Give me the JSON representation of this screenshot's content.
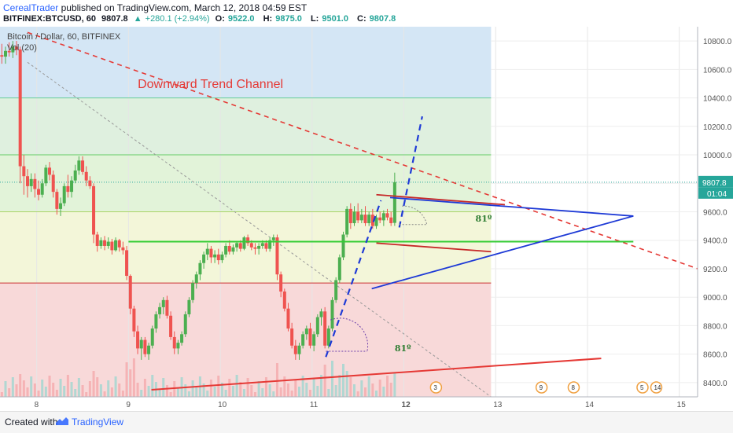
{
  "header": {
    "author": "CerealTrader",
    "published_text": "published on TradingView.com, March 12, 2018 04:59 EST",
    "symbol": "BITFINEX:BTCUSD, 60",
    "last": "9807.8",
    "change_icon": "triangle-up-icon",
    "change": "+280.1 (+2.94%)",
    "o_label": "O:",
    "o": "9522.0",
    "h_label": "H:",
    "h": "9875.0",
    "l_label": "L:",
    "l": "9501.0",
    "c_label": "C:",
    "c": "9807.8"
  },
  "footer": {
    "created_label": "Created with",
    "brand": "TradingView",
    "logo_icon": "tradingview-logo-icon"
  },
  "chart_data": {
    "type": "candlestick",
    "title": "Bitcoin / Dollar, 60, BITFINEX",
    "indicator_label": "Vol (20)",
    "annotation": "Downward Trend Channel",
    "price_axis": {
      "ylim": [
        8300,
        10900
      ],
      "ticks": [
        "10800.0",
        "10600.0",
        "10400.0",
        "10200.0",
        "10000.0",
        "9800.0",
        "9600.0",
        "9400.0",
        "9200.0",
        "9000.0",
        "8800.0",
        "8600.0",
        "8400.0"
      ],
      "current_price_label": "9807.8",
      "countdown_label": "01:04"
    },
    "time_axis": {
      "xlim": [
        7.6,
        15.2
      ],
      "ticks": [
        "8",
        "9",
        "10",
        "11",
        "12",
        "13",
        "14",
        "15"
      ],
      "bold_tick": "12"
    },
    "fib_bands": [
      {
        "from": 10400,
        "to": 10900,
        "color": "#d4e6f5"
      },
      {
        "from": 10000,
        "to": 10400,
        "color": "#dff0df"
      },
      {
        "from": 9600,
        "to": 10000,
        "color": "#e2f3d9"
      },
      {
        "from": 9100,
        "to": 9600,
        "color": "#f3f6d9"
      },
      {
        "from": 8300,
        "to": 9100,
        "color": "#f8d9d9"
      }
    ],
    "fib_levels": [
      {
        "price": 10400,
        "color": "#66cc99"
      },
      {
        "price": 10000,
        "color": "#66cc66"
      },
      {
        "price": 9600,
        "color": "#aad466"
      },
      {
        "price": 9100,
        "color": "#cc3333"
      }
    ],
    "projection_end_x": 12.95,
    "angle_labels": [
      {
        "text": "81º",
        "x": 12.78,
        "price": 9530
      },
      {
        "text": "81º",
        "x": 11.9,
        "price": 8620
      }
    ],
    "candles": [
      [
        7.62,
        10700,
        10780,
        10640,
        10690
      ],
      [
        7.66,
        10690,
        10760,
        10640,
        10730
      ],
      [
        7.7,
        10730,
        10790,
        10690,
        10720
      ],
      [
        7.74,
        10720,
        10800,
        10680,
        10760
      ],
      [
        7.78,
        10760,
        10800,
        10700,
        10740
      ],
      [
        7.82,
        10740,
        10760,
        9800,
        9920
      ],
      [
        7.86,
        9920,
        10000,
        9720,
        9850
      ],
      [
        7.9,
        9850,
        9900,
        9700,
        9780
      ],
      [
        7.94,
        9780,
        9870,
        9740,
        9830
      ],
      [
        7.98,
        9830,
        9870,
        9700,
        9760
      ],
      [
        8.02,
        9760,
        9820,
        9680,
        9720
      ],
      [
        8.06,
        9720,
        9830,
        9700,
        9800
      ],
      [
        8.1,
        9800,
        9930,
        9780,
        9910
      ],
      [
        8.14,
        9910,
        9950,
        9820,
        9860
      ],
      [
        8.18,
        9860,
        9890,
        9700,
        9740
      ],
      [
        8.22,
        9740,
        9760,
        9580,
        9620
      ],
      [
        8.26,
        9620,
        9700,
        9570,
        9660
      ],
      [
        8.3,
        9660,
        9800,
        9640,
        9780
      ],
      [
        8.34,
        9780,
        9860,
        9700,
        9740
      ],
      [
        8.38,
        9740,
        9850,
        9700,
        9820
      ],
      [
        8.42,
        9820,
        9930,
        9800,
        9890
      ],
      [
        8.46,
        9890,
        9990,
        9860,
        9960
      ],
      [
        8.5,
        9960,
        9990,
        9860,
        9880
      ],
      [
        8.54,
        9880,
        9920,
        9780,
        9820
      ],
      [
        8.58,
        9820,
        9850,
        9760,
        9780
      ],
      [
        8.62,
        9780,
        9800,
        9380,
        9440
      ],
      [
        8.66,
        9440,
        9460,
        9320,
        9360
      ],
      [
        8.7,
        9360,
        9420,
        9340,
        9400
      ],
      [
        8.74,
        9400,
        9430,
        9330,
        9360
      ],
      [
        8.78,
        9360,
        9420,
        9340,
        9390
      ],
      [
        8.82,
        9390,
        9410,
        9300,
        9330
      ],
      [
        8.86,
        9330,
        9420,
        9320,
        9400
      ],
      [
        8.9,
        9400,
        9410,
        9320,
        9350
      ],
      [
        8.94,
        9350,
        9390,
        9300,
        9330
      ],
      [
        8.98,
        9330,
        9360,
        9120,
        9150
      ],
      [
        9.02,
        9150,
        9160,
        8880,
        8920
      ],
      [
        9.06,
        8920,
        8940,
        8720,
        8760
      ],
      [
        9.1,
        8760,
        8800,
        8600,
        8640
      ],
      [
        9.14,
        8640,
        8720,
        8560,
        8700
      ],
      [
        9.18,
        8700,
        8720,
        8580,
        8600
      ],
      [
        9.22,
        8600,
        8680,
        8560,
        8660
      ],
      [
        9.26,
        8660,
        8800,
        8640,
        8780
      ],
      [
        9.3,
        8780,
        8900,
        8750,
        8880
      ],
      [
        9.34,
        8880,
        8960,
        8850,
        8930
      ],
      [
        9.38,
        8930,
        9000,
        8880,
        8980
      ],
      [
        9.42,
        8980,
        9010,
        8850,
        8870
      ],
      [
        9.46,
        8870,
        8900,
        8700,
        8720
      ],
      [
        9.5,
        8720,
        8760,
        8600,
        8640
      ],
      [
        9.54,
        8640,
        8700,
        8600,
        8680
      ],
      [
        9.58,
        8680,
        8760,
        8660,
        8740
      ],
      [
        9.62,
        8740,
        8900,
        8720,
        8880
      ],
      [
        9.66,
        8880,
        9000,
        8860,
        8980
      ],
      [
        9.7,
        8980,
        9120,
        8960,
        9100
      ],
      [
        9.74,
        9100,
        9180,
        9060,
        9160
      ],
      [
        9.78,
        9160,
        9260,
        9120,
        9240
      ],
      [
        9.82,
        9240,
        9320,
        9200,
        9300
      ],
      [
        9.86,
        9300,
        9380,
        9260,
        9340
      ],
      [
        9.9,
        9340,
        9360,
        9240,
        9280
      ],
      [
        9.94,
        9280,
        9330,
        9240,
        9300
      ],
      [
        9.98,
        9300,
        9340,
        9230,
        9260
      ],
      [
        10.02,
        9260,
        9320,
        9240,
        9300
      ],
      [
        10.06,
        9300,
        9380,
        9280,
        9360
      ],
      [
        10.1,
        9360,
        9400,
        9300,
        9320
      ],
      [
        10.14,
        9320,
        9370,
        9300,
        9350
      ],
      [
        10.18,
        9350,
        9390,
        9320,
        9380
      ],
      [
        10.22,
        9380,
        9400,
        9320,
        9340
      ],
      [
        10.26,
        9340,
        9430,
        9330,
        9420
      ],
      [
        10.3,
        9420,
        9440,
        9360,
        9380
      ],
      [
        10.34,
        9380,
        9400,
        9330,
        9350
      ],
      [
        10.38,
        9350,
        9380,
        9300,
        9340
      ],
      [
        10.42,
        9340,
        9380,
        9300,
        9360
      ],
      [
        10.46,
        9360,
        9400,
        9340,
        9380
      ],
      [
        10.5,
        9380,
        9400,
        9320,
        9340
      ],
      [
        10.54,
        9340,
        9420,
        9320,
        9400
      ],
      [
        10.58,
        9400,
        9440,
        9360,
        9420
      ],
      [
        10.62,
        9420,
        9440,
        9120,
        9160
      ],
      [
        10.66,
        9160,
        9180,
        9000,
        9040
      ],
      [
        10.7,
        9040,
        9060,
        8900,
        8920
      ],
      [
        10.74,
        8920,
        8960,
        8760,
        8780
      ],
      [
        10.78,
        8780,
        8820,
        8640,
        8660
      ],
      [
        10.82,
        8660,
        8700,
        8560,
        8600
      ],
      [
        10.86,
        8600,
        8680,
        8560,
        8660
      ],
      [
        10.9,
        8660,
        8760,
        8640,
        8740
      ],
      [
        10.94,
        8740,
        8800,
        8700,
        8780
      ],
      [
        10.98,
        8780,
        8820,
        8640,
        8660
      ],
      [
        11.02,
        8660,
        8760,
        8620,
        8740
      ],
      [
        11.06,
        8740,
        8880,
        8720,
        8860
      ],
      [
        11.1,
        8860,
        8920,
        8800,
        8900
      ],
      [
        11.14,
        8900,
        8930,
        8640,
        8660
      ],
      [
        11.18,
        8660,
        8800,
        8640,
        8780
      ],
      [
        11.22,
        8780,
        9000,
        8760,
        8980
      ],
      [
        11.26,
        8980,
        9140,
        8960,
        9120
      ],
      [
        11.3,
        9120,
        9300,
        9100,
        9280
      ],
      [
        11.34,
        9280,
        9460,
        9260,
        9440
      ],
      [
        11.38,
        9440,
        9640,
        9420,
        9620
      ],
      [
        11.42,
        9620,
        9660,
        9480,
        9520
      ],
      [
        11.46,
        9520,
        9640,
        9500,
        9600
      ],
      [
        11.5,
        9600,
        9660,
        9520,
        9540
      ],
      [
        11.54,
        9540,
        9620,
        9520,
        9580
      ],
      [
        11.58,
        9580,
        9640,
        9500,
        9520
      ],
      [
        11.62,
        9520,
        9600,
        9500,
        9580
      ],
      [
        11.66,
        9580,
        9620,
        9480,
        9500
      ],
      [
        11.7,
        9500,
        9580,
        9480,
        9560
      ],
      [
        11.74,
        9560,
        9600,
        9520,
        9540
      ],
      [
        11.78,
        9540,
        9610,
        9500,
        9590
      ],
      [
        11.82,
        9590,
        9620,
        9540,
        9560
      ],
      [
        11.86,
        9560,
        9600,
        9500,
        9520
      ],
      [
        11.9,
        9522,
        9875,
        9501,
        9807.8
      ]
    ],
    "volume_bar_count": 0
  }
}
